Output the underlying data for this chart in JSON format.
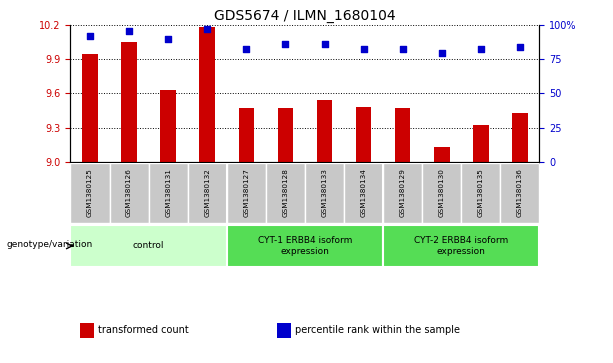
{
  "title": "GDS5674 / ILMN_1680104",
  "samples": [
    "GSM1380125",
    "GSM1380126",
    "GSM1380131",
    "GSM1380132",
    "GSM1380127",
    "GSM1380128",
    "GSM1380133",
    "GSM1380134",
    "GSM1380129",
    "GSM1380130",
    "GSM1380135",
    "GSM1380136"
  ],
  "transformed_counts": [
    9.95,
    10.05,
    9.63,
    10.19,
    9.47,
    9.47,
    9.54,
    9.48,
    9.47,
    9.13,
    9.32,
    9.43
  ],
  "percentile_ranks": [
    92,
    96,
    90,
    97,
    83,
    86,
    86,
    83,
    83,
    80,
    83,
    84
  ],
  "ylim_left": [
    9.0,
    10.2
  ],
  "ylim_right": [
    0,
    100
  ],
  "yticks_left": [
    9.0,
    9.3,
    9.6,
    9.9,
    10.2
  ],
  "yticks_right": [
    0,
    25,
    50,
    75,
    100
  ],
  "ytick_labels_right": [
    "0",
    "25",
    "50",
    "75",
    "100%"
  ],
  "bar_color": "#cc0000",
  "dot_color": "#0000cc",
  "bar_bottom": 9.0,
  "bar_width": 0.4,
  "groups": [
    {
      "label": "control",
      "start": 0,
      "end": 4,
      "color": "#ccffcc"
    },
    {
      "label": "CYT-1 ERBB4 isoform\nexpression",
      "start": 4,
      "end": 8,
      "color": "#55dd55"
    },
    {
      "label": "CYT-2 ERBB4 isoform\nexpression",
      "start": 8,
      "end": 12,
      "color": "#55dd55"
    }
  ],
  "xlabel_row_label": "genotype/variation",
  "legend_items": [
    {
      "color": "#cc0000",
      "label": "transformed count"
    },
    {
      "color": "#0000cc",
      "label": "percentile rank within the sample"
    }
  ],
  "tick_label_color_left": "#cc0000",
  "tick_label_color_right": "#0000cc",
  "cell_bg_color": "#c8c8c8",
  "cell_edge_color": "#ffffff"
}
